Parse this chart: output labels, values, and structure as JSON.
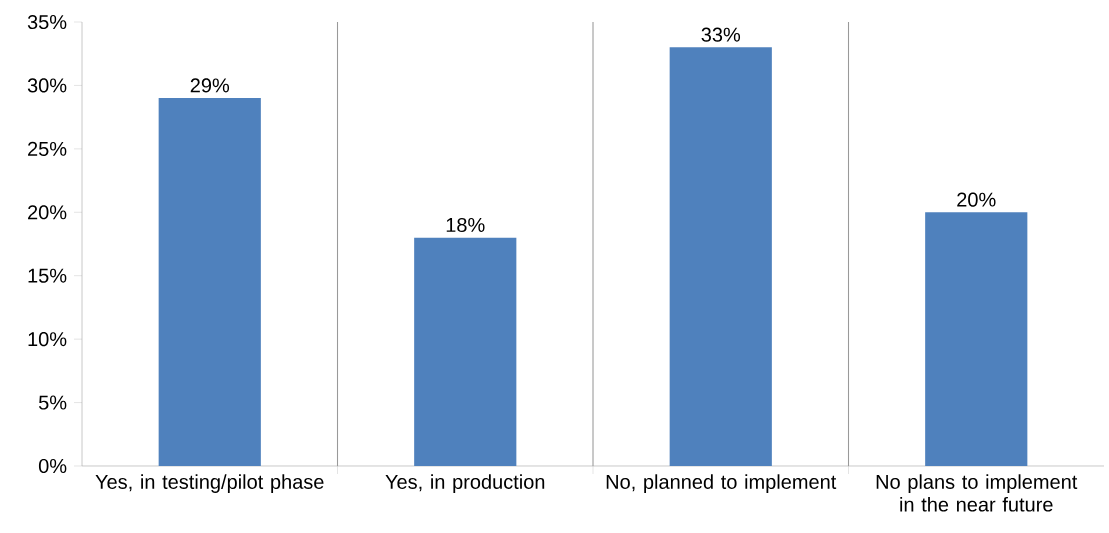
{
  "chart_data": {
    "type": "bar",
    "categories": [
      "Yes, in testing/pilot phase",
      "Yes, in production",
      "No, planned to implement",
      "No plans to implement in the near future"
    ],
    "values": [
      29,
      18,
      33,
      20
    ],
    "value_labels": [
      "29%",
      "18%",
      "33%",
      "20%"
    ],
    "color": "#4f81bd",
    "ylim": [
      0,
      35
    ],
    "yticks": [
      {
        "value": 0,
        "label": "0%"
      },
      {
        "value": 5,
        "label": "5%"
      },
      {
        "value": 10,
        "label": "10%"
      },
      {
        "value": 15,
        "label": "15%"
      },
      {
        "value": 20,
        "label": "20%"
      },
      {
        "value": 25,
        "label": "25%"
      },
      {
        "value": 30,
        "label": "30%"
      },
      {
        "value": 35,
        "label": "35%"
      }
    ],
    "grid": "x"
  }
}
